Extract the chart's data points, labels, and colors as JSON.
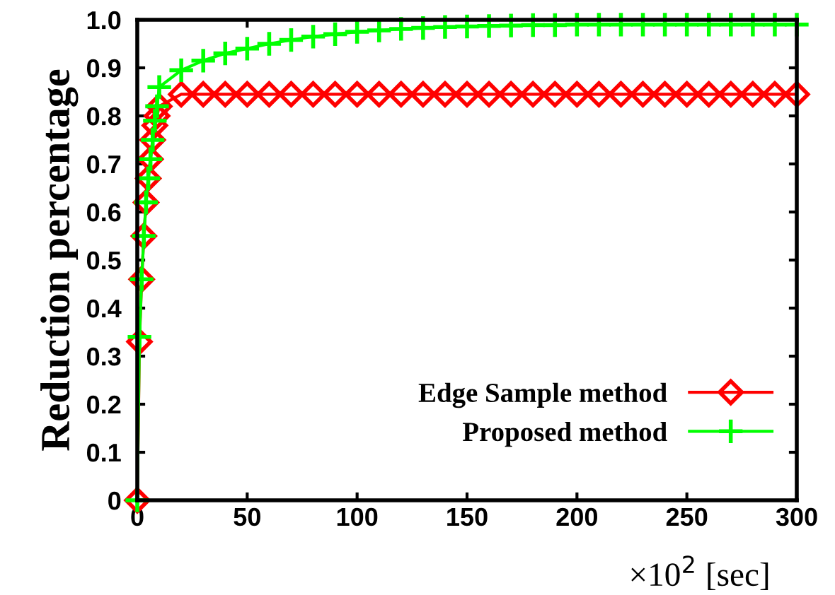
{
  "chart_data": {
    "type": "line",
    "ylabel": "Reduction percentage",
    "xlabel": "×10$^{2}$ [sec]",
    "xlim": [
      0,
      300
    ],
    "xticks": [
      0,
      50,
      100,
      150,
      200,
      250,
      300
    ],
    "ylim": [
      0,
      1.0
    ],
    "yticks": [
      0,
      0.1,
      0.2,
      0.3,
      0.4,
      0.5,
      0.6,
      0.7,
      0.8,
      0.9,
      {
        "value": 1,
        "label": "1.0"
      }
    ],
    "grid": false,
    "legend": "bottom right",
    "line_style": "solid",
    "series": [
      {
        "name": "Edge Sample method",
        "color": "#ff0000",
        "marker": "diamond",
        "x": [
          0,
          1,
          2,
          3,
          4,
          5,
          6,
          7,
          8,
          9,
          10,
          20,
          30,
          40,
          50,
          60,
          70,
          80,
          90,
          100,
          110,
          120,
          130,
          140,
          150,
          160,
          170,
          180,
          190,
          200,
          210,
          220,
          230,
          240,
          250,
          260,
          270,
          280,
          290,
          300
        ],
        "values": [
          0,
          0.33,
          0.46,
          0.55,
          0.62,
          0.67,
          0.71,
          0.75,
          0.78,
          0.8,
          0.82,
          0.845,
          0.845,
          0.845,
          0.845,
          0.845,
          0.845,
          0.845,
          0.845,
          0.845,
          0.845,
          0.845,
          0.845,
          0.845,
          0.845,
          0.845,
          0.845,
          0.845,
          0.845,
          0.845,
          0.845,
          0.845,
          0.845,
          0.845,
          0.845,
          0.845,
          0.845,
          0.845,
          0.845,
          0.845
        ]
      },
      {
        "name": "Proposed method",
        "color": "#00ff00",
        "marker": "cross",
        "x": [
          0,
          1,
          2,
          3,
          4,
          5,
          6,
          7,
          8,
          9,
          10,
          20,
          30,
          40,
          50,
          60,
          70,
          80,
          90,
          100,
          110,
          120,
          130,
          140,
          150,
          160,
          170,
          180,
          190,
          200,
          210,
          220,
          230,
          240,
          250,
          260,
          270,
          280,
          290,
          300
        ],
        "values": [
          0,
          0.34,
          0.46,
          0.55,
          0.62,
          0.67,
          0.71,
          0.75,
          0.79,
          0.82,
          0.86,
          0.895,
          0.915,
          0.93,
          0.94,
          0.95,
          0.958,
          0.965,
          0.97,
          0.975,
          0.978,
          0.981,
          0.983,
          0.985,
          0.986,
          0.987,
          0.988,
          0.989,
          0.989,
          0.99,
          0.99,
          0.99,
          0.99,
          0.99,
          0.99,
          0.99,
          0.99,
          0.99,
          0.99,
          0.99
        ]
      }
    ]
  }
}
